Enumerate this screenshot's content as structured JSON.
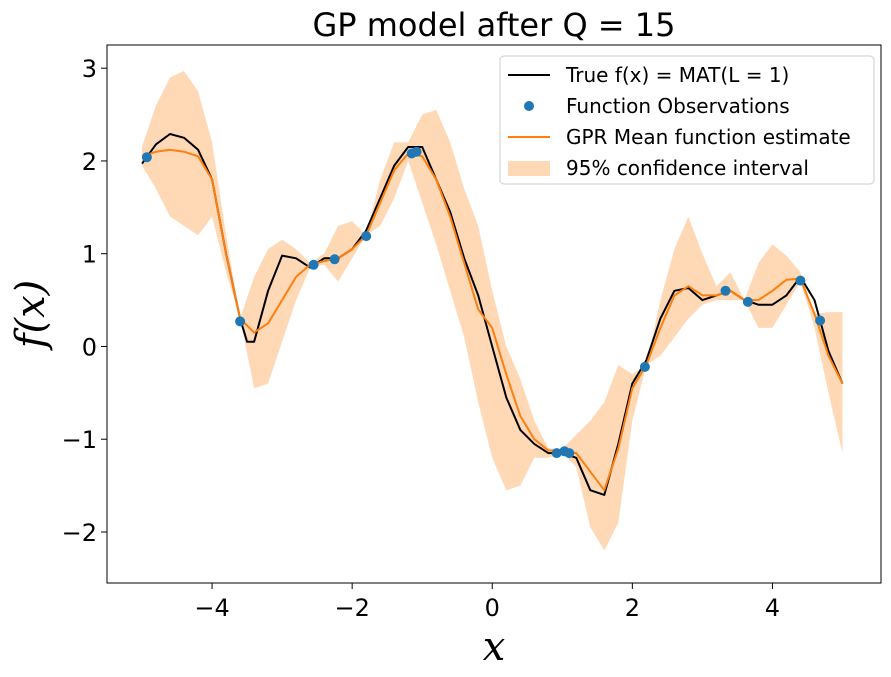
{
  "chart_data": {
    "type": "line",
    "title": "GP model after Q = 15",
    "xlabel": "x",
    "ylabel": "f(x)",
    "xlim": [
      -5.5,
      5.55
    ],
    "ylim": [
      -2.55,
      3.25
    ],
    "xticks": [
      -4,
      -2,
      0,
      2,
      4
    ],
    "xtick_labels": [
      "−4",
      "−2",
      "0",
      "2",
      "4"
    ],
    "yticks": [
      -2,
      -1,
      0,
      1,
      2,
      3
    ],
    "ytick_labels": [
      "−2",
      "−1",
      "0",
      "1",
      "2",
      "3"
    ],
    "grid": false,
    "legend_position": "top-right",
    "legend": [
      {
        "label": "True f(x) = MAT(L = 1)",
        "style": "line",
        "color": "#000000"
      },
      {
        "label": "Function Observations",
        "style": "marker",
        "color": "#1f77b4"
      },
      {
        "label": "GPR Mean function estimate",
        "style": "line",
        "color": "#ff7f0e"
      },
      {
        "label": "95% confidence interval",
        "style": "patch",
        "color": "#ffd8b6"
      }
    ],
    "series": [
      {
        "name": "True f(x) = MAT(L = 1)",
        "kind": "line",
        "color": "#000000",
        "x": [
          -5.0,
          -4.8,
          -4.6,
          -4.4,
          -4.2,
          -4.0,
          -3.8,
          -3.6,
          -3.5,
          -3.4,
          -3.2,
          -3.0,
          -2.8,
          -2.6,
          -2.4,
          -2.2,
          -2.0,
          -1.8,
          -1.6,
          -1.4,
          -1.2,
          -1.0,
          -0.8,
          -0.6,
          -0.4,
          -0.2,
          0.0,
          0.2,
          0.4,
          0.6,
          0.8,
          1.0,
          1.2,
          1.4,
          1.6,
          1.8,
          2.0,
          2.2,
          2.4,
          2.6,
          2.8,
          3.0,
          3.2,
          3.4,
          3.6,
          3.8,
          4.0,
          4.2,
          4.4,
          4.6,
          4.8,
          5.0
        ],
        "y": [
          1.97,
          2.18,
          2.29,
          2.25,
          2.12,
          1.8,
          1.0,
          0.3,
          0.05,
          0.05,
          0.6,
          0.98,
          0.95,
          0.85,
          0.95,
          0.95,
          1.05,
          1.25,
          1.6,
          1.95,
          2.15,
          2.15,
          1.8,
          1.45,
          0.95,
          0.55,
          0.0,
          -0.55,
          -0.9,
          -1.05,
          -1.15,
          -1.15,
          -1.2,
          -1.55,
          -1.6,
          -1.05,
          -0.4,
          -0.15,
          0.3,
          0.6,
          0.63,
          0.5,
          0.55,
          0.6,
          0.5,
          0.45,
          0.45,
          0.55,
          0.75,
          0.5,
          -0.05,
          -0.4
        ]
      },
      {
        "name": "GPR Mean function estimate",
        "kind": "line",
        "color": "#ff7f0e",
        "x": [
          -5.0,
          -4.8,
          -4.6,
          -4.4,
          -4.2,
          -4.0,
          -3.8,
          -3.6,
          -3.4,
          -3.2,
          -3.0,
          -2.8,
          -2.6,
          -2.4,
          -2.2,
          -2.0,
          -1.8,
          -1.6,
          -1.4,
          -1.2,
          -1.0,
          -0.8,
          -0.6,
          -0.4,
          -0.2,
          0.0,
          0.2,
          0.4,
          0.6,
          0.8,
          1.0,
          1.2,
          1.4,
          1.6,
          1.8,
          2.0,
          2.2,
          2.4,
          2.6,
          2.8,
          3.0,
          3.2,
          3.4,
          3.6,
          3.8,
          4.0,
          4.2,
          4.4,
          4.6,
          4.8,
          5.0
        ],
        "y": [
          2.05,
          2.1,
          2.12,
          2.1,
          2.05,
          1.8,
          1.0,
          0.3,
          0.15,
          0.25,
          0.5,
          0.75,
          0.88,
          0.92,
          0.95,
          1.05,
          1.2,
          1.55,
          1.9,
          2.08,
          2.05,
          1.8,
          1.4,
          0.9,
          0.4,
          0.2,
          -0.3,
          -0.75,
          -1.0,
          -1.12,
          -1.13,
          -1.15,
          -1.35,
          -1.55,
          -1.1,
          -0.45,
          -0.2,
          0.2,
          0.55,
          0.65,
          0.55,
          0.55,
          0.6,
          0.5,
          0.5,
          0.6,
          0.72,
          0.73,
          0.35,
          -0.1,
          -0.4
        ]
      }
    ],
    "observations": {
      "name": "Function Observations",
      "color": "#1f77b4",
      "x": [
        -4.93,
        -3.6,
        -2.55,
        -2.25,
        -1.8,
        -1.15,
        -1.08,
        0.92,
        1.03,
        1.1,
        2.18,
        3.33,
        3.65,
        4.4,
        4.68
      ],
      "y": [
        2.04,
        0.27,
        0.88,
        0.94,
        1.19,
        2.08,
        2.1,
        -1.15,
        -1.13,
        -1.15,
        -0.22,
        0.6,
        0.48,
        0.71,
        0.28
      ]
    },
    "confidence_interval": {
      "name": "95% confidence interval",
      "color": "#ffd8b6",
      "x": [
        -5.0,
        -4.8,
        -4.6,
        -4.4,
        -4.2,
        -4.0,
        -3.8,
        -3.6,
        -3.4,
        -3.2,
        -3.0,
        -2.8,
        -2.6,
        -2.4,
        -2.2,
        -2.0,
        -1.8,
        -1.6,
        -1.4,
        -1.2,
        -1.0,
        -0.8,
        -0.6,
        -0.4,
        -0.2,
        0.0,
        0.2,
        0.4,
        0.6,
        0.8,
        1.0,
        1.2,
        1.4,
        1.6,
        1.8,
        2.0,
        2.2,
        2.4,
        2.6,
        2.8,
        3.0,
        3.2,
        3.4,
        3.6,
        3.8,
        4.0,
        4.2,
        4.4,
        4.6,
        4.8,
        5.0
      ],
      "upper": [
        2.15,
        2.6,
        2.9,
        2.97,
        2.75,
        2.2,
        1.2,
        0.3,
        0.75,
        1.05,
        1.15,
        1.05,
        0.9,
        1.0,
        1.3,
        1.35,
        1.2,
        1.8,
        2.2,
        2.2,
        2.5,
        2.55,
        2.2,
        1.7,
        1.3,
        0.6,
        0.0,
        -0.35,
        -0.8,
        -1.1,
        -1.1,
        -0.95,
        -0.8,
        -0.6,
        -0.2,
        -0.3,
        -0.2,
        0.5,
        1.05,
        1.4,
        1.0,
        0.65,
        0.8,
        0.5,
        0.9,
        1.1,
        0.98,
        0.8,
        0.35,
        0.37,
        0.37
      ],
      "lower": [
        1.95,
        1.7,
        1.4,
        1.3,
        1.2,
        1.4,
        0.8,
        0.3,
        -0.45,
        -0.4,
        0.05,
        0.5,
        0.85,
        0.88,
        0.7,
        0.95,
        1.2,
        1.3,
        1.6,
        2.0,
        1.55,
        1.1,
        0.6,
        0.1,
        -0.6,
        -1.2,
        -1.55,
        -1.5,
        -1.2,
        -1.2,
        -1.15,
        -1.3,
        -1.95,
        -2.2,
        -1.9,
        -0.8,
        -0.2,
        -0.1,
        0.1,
        0.3,
        0.45,
        0.5,
        0.5,
        0.5,
        0.2,
        0.2,
        0.45,
        0.7,
        0.2,
        -0.5,
        -1.15
      ]
    }
  }
}
